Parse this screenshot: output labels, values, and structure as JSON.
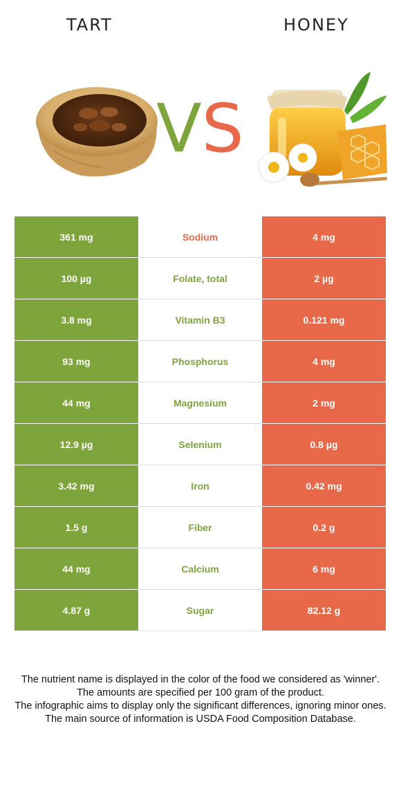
{
  "header": {
    "left_food": "TART",
    "right_food": "HONEY",
    "vs_v": "V",
    "vs_s": "S"
  },
  "colors": {
    "left": "#7ea53b",
    "right": "#e8694a"
  },
  "rows": [
    {
      "left": "361 mg",
      "nutrient": "Sodium",
      "right": "4 mg",
      "winner": "right"
    },
    {
      "left": "100 µg",
      "nutrient": "Folate, total",
      "right": "2 µg",
      "winner": "left"
    },
    {
      "left": "3.8 mg",
      "nutrient": "Vitamin B3",
      "right": "0.121 mg",
      "winner": "left"
    },
    {
      "left": "93 mg",
      "nutrient": "Phosphorus",
      "right": "4 mg",
      "winner": "left"
    },
    {
      "left": "44 mg",
      "nutrient": "Magnesium",
      "right": "2 mg",
      "winner": "left"
    },
    {
      "left": "12.9 µg",
      "nutrient": "Selenium",
      "right": "0.8 µg",
      "winner": "left"
    },
    {
      "left": "3.42 mg",
      "nutrient": "Iron",
      "right": "0.42 mg",
      "winner": "left"
    },
    {
      "left": "1.5 g",
      "nutrient": "Fiber",
      "right": "0.2 g",
      "winner": "left"
    },
    {
      "left": "44 mg",
      "nutrient": "Calcium",
      "right": "6 mg",
      "winner": "left"
    },
    {
      "left": "4.87 g",
      "nutrient": "Sugar",
      "right": "82.12 g",
      "winner": "left"
    }
  ],
  "notes": [
    "The nutrient name is displayed in the color of the food we considered as 'winner'.",
    "The amounts are specified per 100 gram of the product.",
    "The infographic aims to display only the significant differences, ignoring minor ones.",
    "The main source of information is USDA Food Composition Database."
  ]
}
